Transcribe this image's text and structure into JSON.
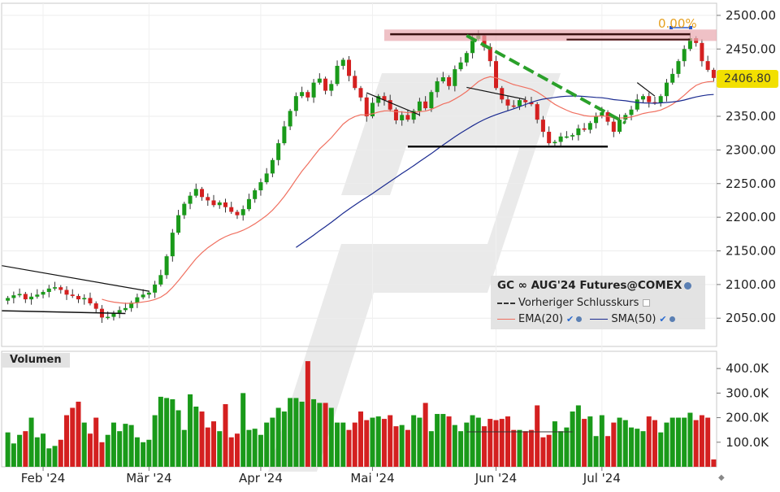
{
  "chart_data": {
    "type": "candlestick",
    "title": "GC ∞ AUG'24 Futures@COMEX",
    "legend": {
      "instrument": "GC ∞ AUG'24 Futures@COMEX",
      "prev_close_label": "Vorheriger Schlusskurs",
      "ema_label": "EMA(20)",
      "sma_label": "SMA(50)",
      "placement": "bottom-right"
    },
    "last_price": "2406.80",
    "change_label": "0.00%",
    "y_axis_ticks": [
      "2500.00",
      "2450.00",
      "2400.00",
      "2350.00",
      "2300.00",
      "2250.00",
      "2200.00",
      "2150.00",
      "2100.00",
      "2050.00"
    ],
    "ylim": [
      2008,
      2518
    ],
    "volume_panel": {
      "label": "Volumen",
      "ticks": [
        "400.0K",
        "300.0K",
        "200.0K",
        "100.0K"
      ],
      "ylim": [
        0,
        470
      ]
    },
    "x_axis_labels": [
      "Feb '24",
      "Mär '24",
      "Apr '24",
      "Mai '24",
      "Jun '24",
      "Jul '24"
    ],
    "x_label_index": [
      6,
      24,
      43,
      62,
      83,
      101
    ],
    "closes": [
      2080,
      2084,
      2086,
      2078,
      2082,
      2085,
      2089,
      2094,
      2096,
      2092,
      2085,
      2083,
      2078,
      2080,
      2072,
      2064,
      2051,
      2052,
      2058,
      2062,
      2065,
      2073,
      2081,
      2085,
      2088,
      2100,
      2114,
      2142,
      2177,
      2203,
      2220,
      2232,
      2242,
      2230,
      2225,
      2218,
      2222,
      2215,
      2208,
      2203,
      2212,
      2227,
      2240,
      2252,
      2265,
      2285,
      2310,
      2335,
      2358,
      2380,
      2386,
      2378,
      2400,
      2406,
      2388,
      2398,
      2425,
      2434,
      2410,
      2392,
      2378,
      2350,
      2370,
      2380,
      2374,
      2360,
      2344,
      2352,
      2345,
      2358,
      2372,
      2362,
      2386,
      2402,
      2408,
      2395,
      2420,
      2430,
      2444,
      2465,
      2470,
      2453,
      2432,
      2392,
      2375,
      2366,
      2365,
      2374,
      2371,
      2368,
      2345,
      2327,
      2310,
      2312,
      2320,
      2320,
      2322,
      2332,
      2330,
      2340,
      2350,
      2356,
      2342,
      2327,
      2345,
      2352,
      2360,
      2375,
      2380,
      2371,
      2370,
      2380,
      2400,
      2413,
      2432,
      2450,
      2466,
      2459,
      2432,
      2419,
      2407
    ],
    "volumes": [
      140,
      95,
      130,
      145,
      200,
      120,
      135,
      75,
      85,
      110,
      210,
      240,
      265,
      180,
      135,
      200,
      100,
      130,
      180,
      145,
      175,
      170,
      120,
      100,
      110,
      210,
      285,
      280,
      275,
      230,
      150,
      295,
      245,
      225,
      160,
      185,
      145,
      255,
      120,
      135,
      300,
      150,
      155,
      130,
      180,
      200,
      240,
      225,
      280,
      280,
      265,
      430,
      275,
      260,
      260,
      240,
      180,
      180,
      150,
      180,
      225,
      190,
      200,
      205,
      195,
      210,
      165,
      170,
      150,
      210,
      200,
      260,
      145,
      215,
      215,
      205,
      170,
      145,
      180,
      210,
      200,
      165,
      195,
      190,
      195,
      205,
      150,
      150,
      145,
      150,
      250,
      120,
      130,
      185,
      145,
      160,
      225,
      250,
      195,
      205,
      125,
      210,
      125,
      180,
      200,
      190,
      160,
      155,
      145,
      205,
      190,
      140,
      180,
      200,
      200,
      200,
      220,
      190,
      210,
      200,
      30
    ],
    "dates_range": "Feb '24 – Jul '24"
  }
}
